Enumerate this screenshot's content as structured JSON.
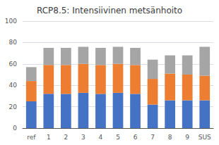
{
  "chart_data": {
    "type": "bar",
    "title": "RCP8.5: Intensiivinen metsänhoito",
    "categories": [
      "ref",
      "1",
      "2",
      "3",
      "4",
      "5",
      "6",
      "7",
      "8",
      "9",
      "SUS"
    ],
    "series": [
      {
        "color": "#4472c4",
        "values": [
          25,
          32,
          32,
          33,
          32,
          33,
          32,
          22,
          26,
          26,
          26
        ]
      },
      {
        "color": "#ed7d31",
        "values": [
          19,
          27,
          27,
          27,
          27,
          27,
          27,
          24,
          25,
          24,
          23
        ]
      },
      {
        "color": "#a5a5a5",
        "values": [
          13,
          16,
          16,
          16,
          16,
          16,
          16,
          18,
          17,
          18,
          27
        ]
      }
    ],
    "stacked": true,
    "ylim": [
      0,
      100
    ],
    "yticks": [
      0,
      20,
      40,
      60,
      80,
      100
    ],
    "grid": true
  }
}
